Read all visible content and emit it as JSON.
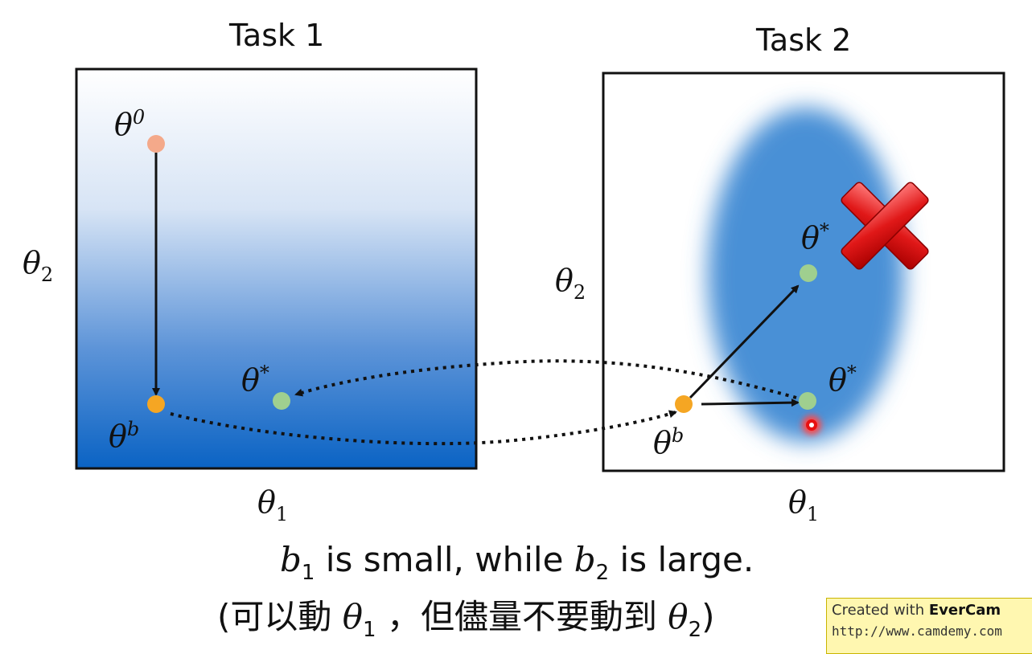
{
  "panels": [
    {
      "title": "Task 1",
      "x_label": "θ",
      "x_sub": "1",
      "y_label": "θ",
      "y_sub": "2"
    },
    {
      "title": "Task 2",
      "x_label": "θ",
      "x_sub": "1",
      "y_label": "θ",
      "y_sub": "2"
    }
  ],
  "points": {
    "t1_init": {
      "base": "θ",
      "sup": "0"
    },
    "t1_b": {
      "base": "θ",
      "sup": "b"
    },
    "t1_star": {
      "base": "θ",
      "sup": "*"
    },
    "t2_b": {
      "base": "θ",
      "sup": "b"
    },
    "t2_star_top": {
      "base": "θ",
      "sup": "*"
    },
    "t2_star_right": {
      "base": "θ",
      "sup": "*"
    }
  },
  "caption": {
    "line1": {
      "b1": "b",
      "b1_sub": "1",
      "mid": " is small, while ",
      "b2": "b",
      "b2_sub": "2",
      "end": " is large."
    },
    "line2": {
      "start": "(可以動 ",
      "theta1": "θ",
      "theta1_sub": "1",
      "mid": " ，但儘量不要動到 ",
      "theta2": "θ",
      "theta2_sub": "2",
      "end": ")"
    }
  },
  "watermark": {
    "line1_prefix": "Created with ",
    "line1_brand": "EverCam",
    "line2": "http://www.camdemy.com"
  },
  "colors": {
    "gradient_top": "#ffffff",
    "gradient_bottom": "#0a63c4",
    "ellipse": "#4a90d6",
    "orange_point": "#f5a623",
    "initial_point": "#f4a98a",
    "green_point": "#9fcf8f",
    "red_cross": "#e02020"
  }
}
